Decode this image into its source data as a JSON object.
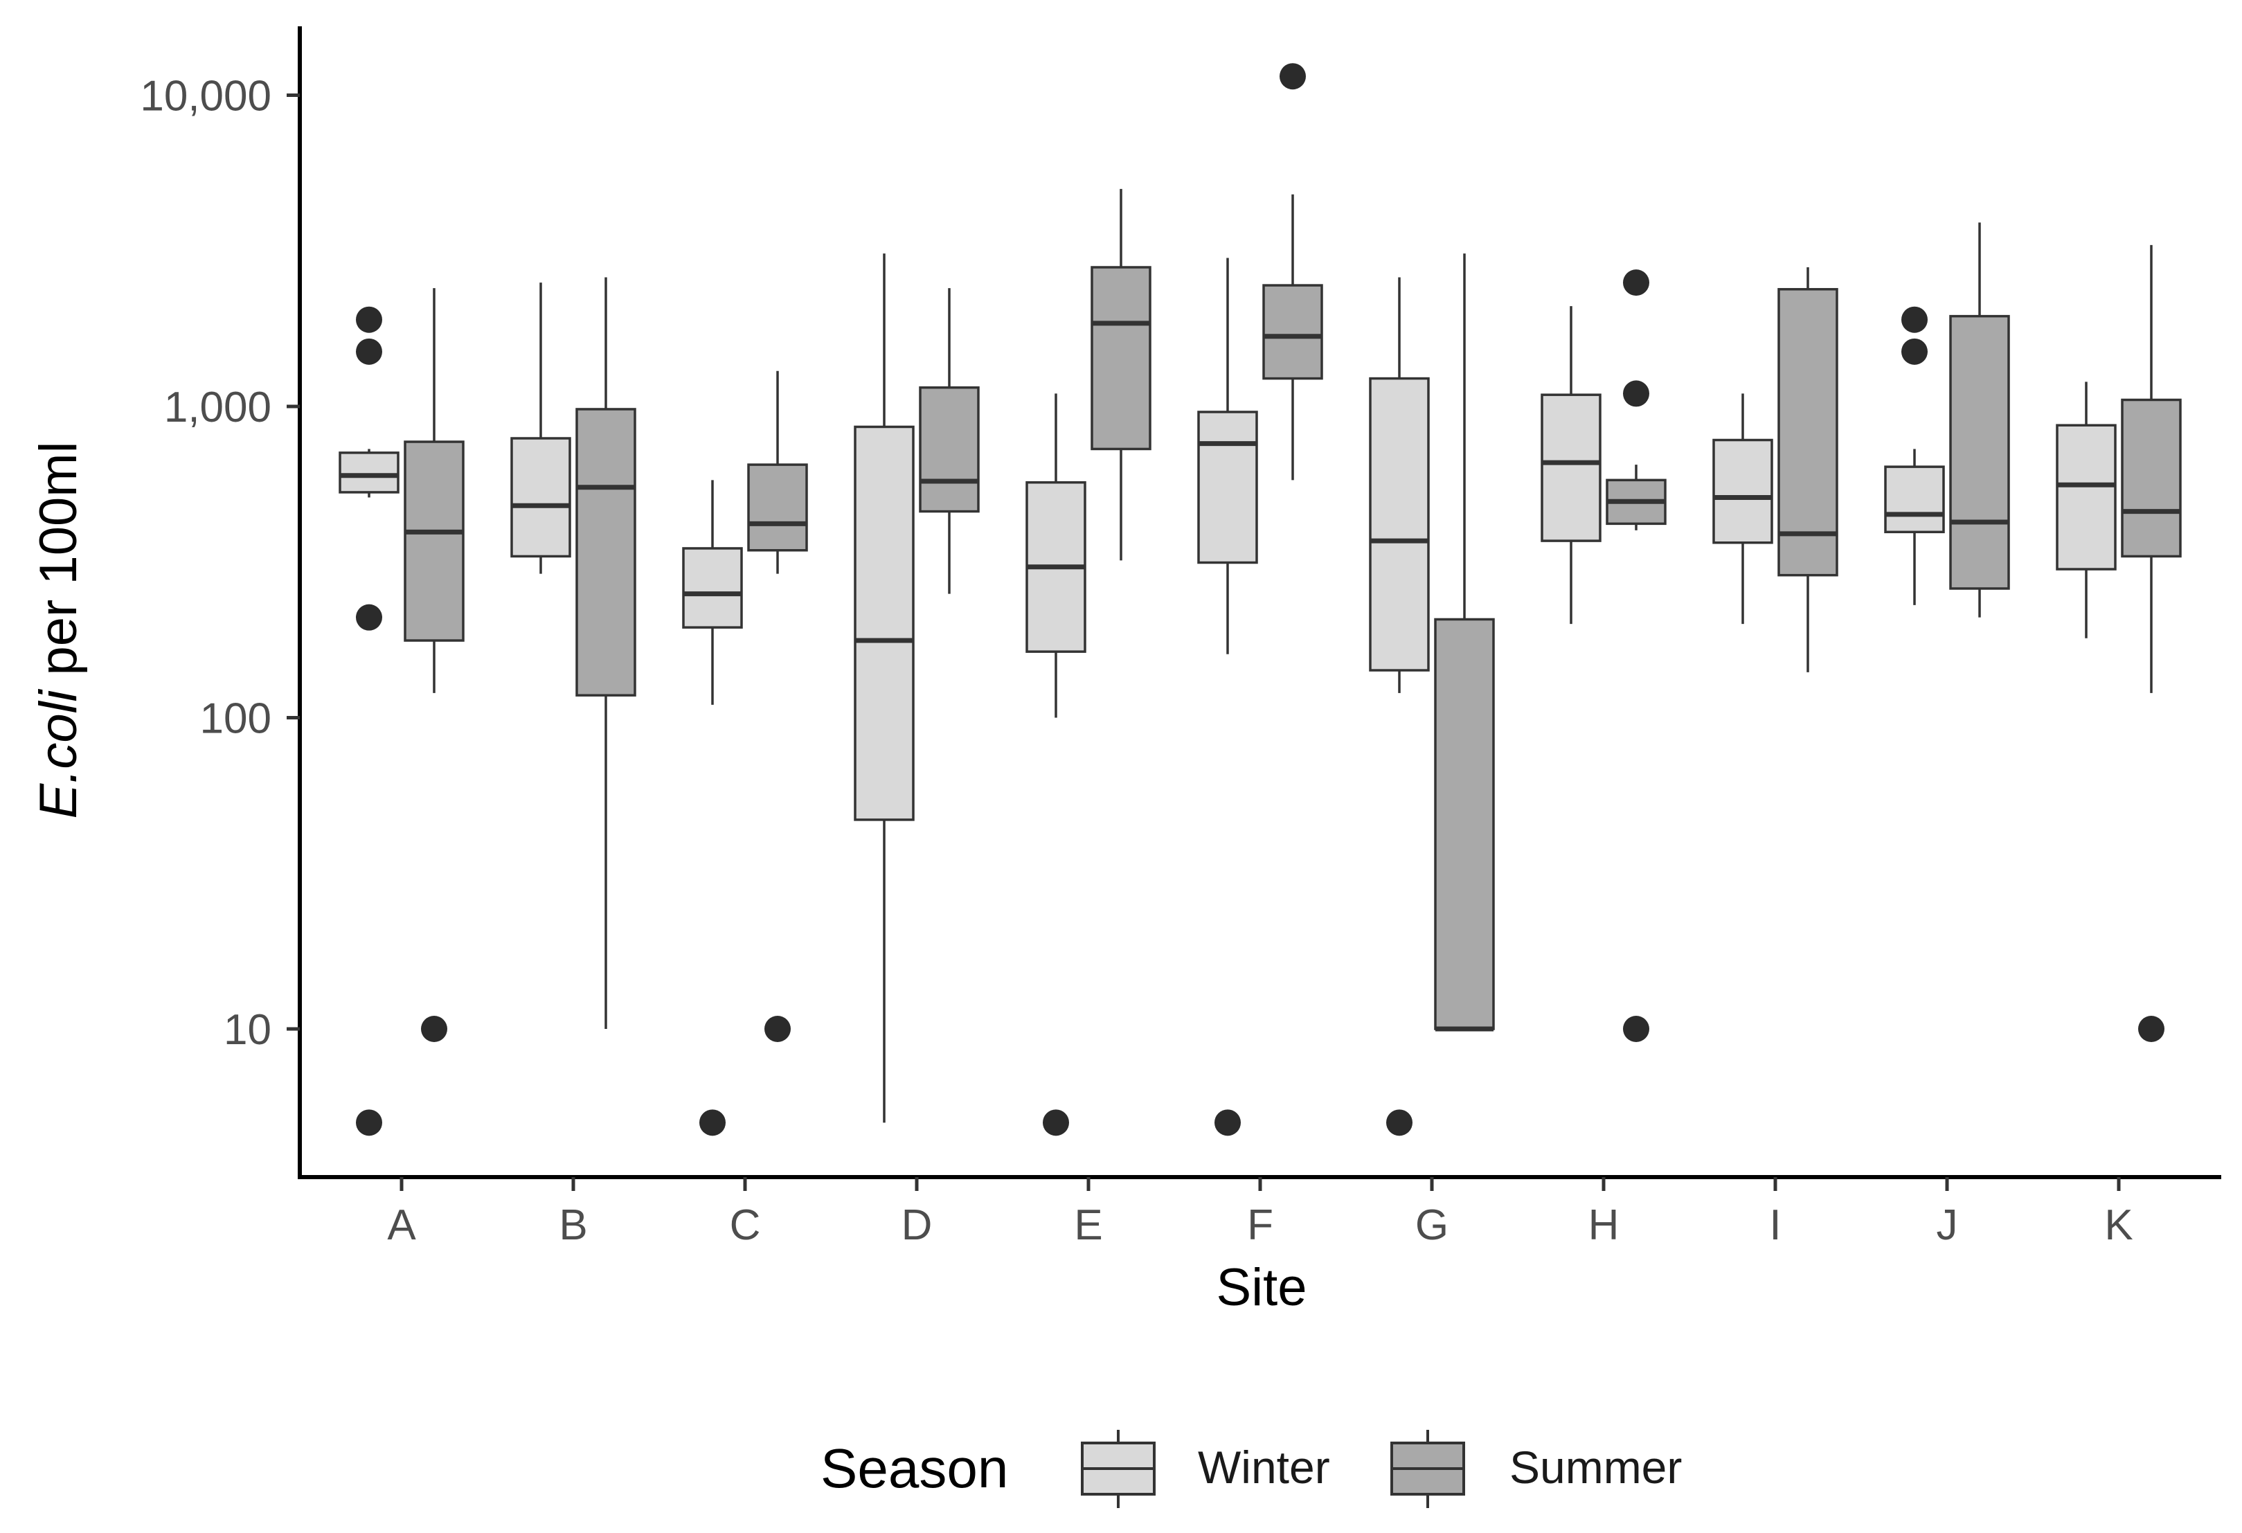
{
  "chart_data": {
    "type": "boxplot",
    "scale_y": "log10",
    "ylabel_italic": "E.coli",
    "ylabel_rest": " per 100ml",
    "xlabel": "Site",
    "ylim": [
      3.5,
      17000
    ],
    "y_ticks": [
      10,
      100,
      1000,
      10000
    ],
    "y_tick_labels": [
      "10",
      "100",
      "1,000",
      "10,000"
    ],
    "categories": [
      "A",
      "B",
      "C",
      "D",
      "E",
      "F",
      "G",
      "H",
      "I",
      "J",
      "K"
    ],
    "legend": {
      "title": "Season",
      "position": "bottom",
      "entries": [
        {
          "name": "Winter",
          "color": "#d9d9d9"
        },
        {
          "name": "Summer",
          "color": "#a9a9a9"
        }
      ]
    },
    "colors": {
      "box_stroke": "#333333",
      "outlier": "#2b2b2b",
      "axis": "#000000"
    },
    "series": [
      {
        "name": "Winter",
        "color": "#d9d9d9",
        "boxes": [
          {
            "site": "A",
            "whisker_low": 510,
            "q1": 530,
            "median": 600,
            "q3": 710,
            "whisker_high": 730,
            "outliers": [
              1900,
              1500,
              210,
              5
            ]
          },
          {
            "site": "B",
            "whisker_low": 290,
            "q1": 330,
            "median": 480,
            "q3": 790,
            "whisker_high": 2500,
            "outliers": []
          },
          {
            "site": "C",
            "whisker_low": 110,
            "q1": 195,
            "median": 250,
            "q3": 350,
            "whisker_high": 580,
            "outliers": [
              5
            ]
          },
          {
            "site": "D",
            "whisker_low": 5,
            "q1": 47,
            "median": 177,
            "q3": 860,
            "whisker_high": 3100,
            "outliers": []
          },
          {
            "site": "E",
            "whisker_low": 100,
            "q1": 163,
            "median": 305,
            "q3": 570,
            "whisker_high": 1100,
            "outliers": [
              5
            ]
          },
          {
            "site": "F",
            "whisker_low": 160,
            "q1": 315,
            "median": 760,
            "q3": 960,
            "whisker_high": 3000,
            "outliers": [
              5
            ]
          },
          {
            "site": "G",
            "whisker_low": 120,
            "q1": 142,
            "median": 370,
            "q3": 1230,
            "whisker_high": 2600,
            "outliers": [
              5
            ]
          },
          {
            "site": "H",
            "whisker_low": 200,
            "q1": 370,
            "median": 660,
            "q3": 1090,
            "whisker_high": 2100,
            "outliers": []
          },
          {
            "site": "I",
            "whisker_low": 200,
            "q1": 365,
            "median": 510,
            "q3": 780,
            "whisker_high": 1100,
            "outliers": []
          },
          {
            "site": "J",
            "whisker_low": 230,
            "q1": 395,
            "median": 450,
            "q3": 640,
            "whisker_high": 730,
            "outliers": [
              1900,
              1500
            ]
          },
          {
            "site": "K",
            "whisker_low": 180,
            "q1": 300,
            "median": 560,
            "q3": 870,
            "whisker_high": 1200,
            "outliers": []
          }
        ]
      },
      {
        "name": "Summer",
        "color": "#a9a9a9",
        "boxes": [
          {
            "site": "A",
            "whisker_low": 120,
            "q1": 177,
            "median": 395,
            "q3": 770,
            "whisker_high": 2400,
            "outliers": [
              10
            ]
          },
          {
            "site": "B",
            "whisker_low": 10,
            "q1": 118,
            "median": 550,
            "q3": 980,
            "whisker_high": 2600,
            "outliers": []
          },
          {
            "site": "C",
            "whisker_low": 290,
            "q1": 345,
            "median": 420,
            "q3": 650,
            "whisker_high": 1300,
            "outliers": [
              10
            ]
          },
          {
            "site": "D",
            "whisker_low": 250,
            "q1": 460,
            "median": 575,
            "q3": 1150,
            "whisker_high": 2400,
            "outliers": []
          },
          {
            "site": "E",
            "whisker_low": 320,
            "q1": 730,
            "median": 1850,
            "q3": 2800,
            "whisker_high": 5000,
            "outliers": []
          },
          {
            "site": "F",
            "whisker_low": 580,
            "q1": 1230,
            "median": 1680,
            "q3": 2450,
            "whisker_high": 4800,
            "outliers": [
              11500
            ]
          },
          {
            "site": "G",
            "whisker_low": 10,
            "q1": 10,
            "median": 10,
            "q3": 207,
            "whisker_high": 3100,
            "outliers": []
          },
          {
            "site": "H",
            "whisker_low": 400,
            "q1": 420,
            "median": 495,
            "q3": 580,
            "whisker_high": 650,
            "outliers": [
              2500,
              1100,
              10
            ]
          },
          {
            "site": "I",
            "whisker_low": 140,
            "q1": 287,
            "median": 390,
            "q3": 2380,
            "whisker_high": 2800,
            "outliers": []
          },
          {
            "site": "J",
            "whisker_low": 210,
            "q1": 260,
            "median": 425,
            "q3": 1950,
            "whisker_high": 3900,
            "outliers": []
          },
          {
            "site": "K",
            "whisker_low": 120,
            "q1": 330,
            "median": 460,
            "q3": 1050,
            "whisker_high": 3300,
            "outliers": [
              10
            ]
          }
        ]
      }
    ]
  }
}
